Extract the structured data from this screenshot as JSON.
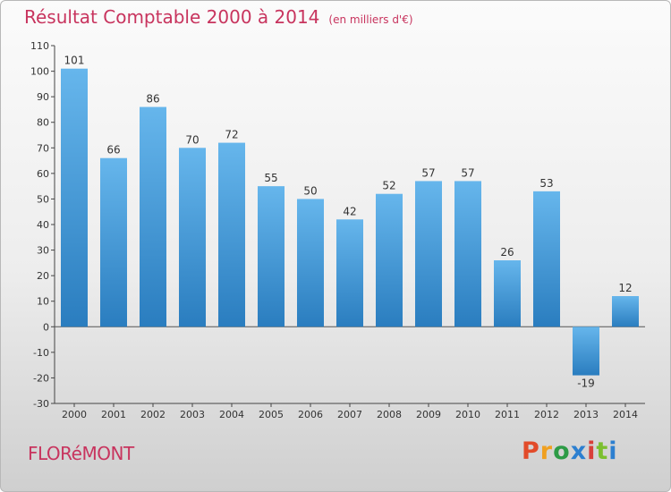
{
  "header": {
    "title": "Résultat Comptable 2000 à 2014",
    "unit": "(en milliers d'€)"
  },
  "footer": {
    "commune": "FLORéMONT",
    "logo": "Proxiti"
  },
  "colors": {
    "title": "#c8345e",
    "bar_top": "#66b6ec",
    "bar_bottom": "#2a7dbf",
    "logo": [
      "#e24b2a",
      "#f0a020",
      "#2d9b46",
      "#2c7fd0",
      "#d8403a",
      "#7cbf2f",
      "#2c7fd0"
    ]
  },
  "chart_data": {
    "type": "bar",
    "title": "Résultat Comptable 2000 à 2014",
    "ylabel": "en milliers d'€",
    "xlabel": "",
    "categories": [
      "2000",
      "2001",
      "2002",
      "2003",
      "2004",
      "2005",
      "2006",
      "2007",
      "2008",
      "2009",
      "2010",
      "2011",
      "2012",
      "2013",
      "2014"
    ],
    "values": [
      101,
      66,
      86,
      70,
      72,
      55,
      50,
      42,
      52,
      57,
      57,
      26,
      53,
      -19,
      12
    ],
    "data_labels": [
      "101",
      "66",
      "86",
      "70",
      "72",
      "55",
      "50",
      "42",
      "52",
      "57",
      "57",
      "26",
      "53",
      "-19",
      "12"
    ],
    "ylim": [
      -30,
      110
    ],
    "yticks": [
      -30,
      -20,
      -10,
      0,
      10,
      20,
      30,
      40,
      50,
      60,
      70,
      80,
      90,
      100,
      110
    ],
    "ytick_labels": [
      "-30",
      "-20",
      "-10",
      "0",
      "10",
      "20",
      "30",
      "40",
      "50",
      "60",
      "70",
      "80",
      "90",
      "100",
      "110"
    ],
    "grid": false
  }
}
